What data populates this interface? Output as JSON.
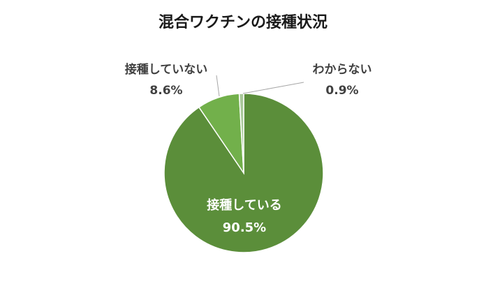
{
  "chart_data": {
    "type": "pie",
    "title": "混合ワクチンの接種状況",
    "slices": [
      {
        "name": "接種している",
        "value": 90.5,
        "label": "90.5%",
        "color": "#5B8E3A"
      },
      {
        "name": "接種していない",
        "value": 8.6,
        "label": "8.6%",
        "color": "#72B04B"
      },
      {
        "name": "わからない",
        "value": 0.9,
        "label": "0.9%",
        "color": "#A9C89A"
      }
    ],
    "legend": "none"
  }
}
